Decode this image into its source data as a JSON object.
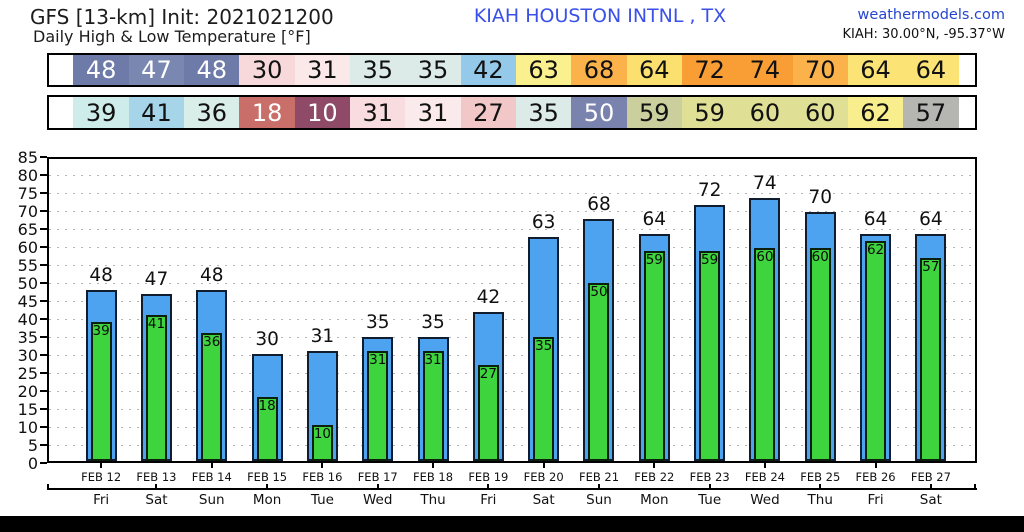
{
  "header": {
    "model_title": "GFS [13-km] Init: 2021021200",
    "subtitle": "Daily High & Low Temperature [°F]",
    "station": "KIAH HOUSTON INTNL , TX",
    "station_color": "#3a50e8",
    "site": "weathermodels.com",
    "site_color": "#2645cf",
    "coords": "KIAH: 30.00°N, -95.37°W"
  },
  "chart_data": {
    "type": "bar",
    "title": "Daily High & Low Temperature [°F]",
    "categories": [
      "FEB 12",
      "FEB 13",
      "FEB 14",
      "FEB 15",
      "FEB 16",
      "FEB 17",
      "FEB 18",
      "FEB 19",
      "FEB 20",
      "FEB 21",
      "FEB 22",
      "FEB 23",
      "FEB 24",
      "FEB 25",
      "FEB 26",
      "FEB 27"
    ],
    "weekdays": [
      "Fri",
      "Sat",
      "Sun",
      "Mon",
      "Tue",
      "Wed",
      "Thu",
      "Fri",
      "Sat",
      "Sun",
      "Mon",
      "Tue",
      "Wed",
      "Thu",
      "Fri",
      "Sat"
    ],
    "series": [
      {
        "name": "High",
        "values": [
          48,
          47,
          48,
          30,
          31,
          35,
          35,
          42,
          63,
          68,
          64,
          72,
          74,
          70,
          64,
          64
        ],
        "color": "#4da3f0",
        "edge": "#101d2e"
      },
      {
        "name": "Low",
        "values": [
          39,
          41,
          36,
          18,
          10,
          31,
          31,
          27,
          35,
          50,
          59,
          59,
          60,
          60,
          62,
          57
        ],
        "color": "#3ed43e",
        "edge": "#0c1f0c"
      }
    ],
    "ylim": [
      0,
      85
    ],
    "ytick_step": 5,
    "grid": "dashed-horizontal",
    "legend": "none"
  },
  "strips": {
    "high": {
      "cells": [
        {
          "value": "48",
          "bg": "#6e7ba9",
          "fg": "#ffffff"
        },
        {
          "value": "47",
          "bg": "#7a88b1",
          "fg": "#ffffff"
        },
        {
          "value": "48",
          "bg": "#6e7ba9",
          "fg": "#ffffff"
        },
        {
          "value": "30",
          "bg": "#f7d9dc",
          "fg": "#111111"
        },
        {
          "value": "31",
          "bg": "#fbe9ea",
          "fg": "#111111"
        },
        {
          "value": "35",
          "bg": "#dcebe7",
          "fg": "#111111"
        },
        {
          "value": "35",
          "bg": "#dcebe7",
          "fg": "#111111"
        },
        {
          "value": "42",
          "bg": "#94c9ea",
          "fg": "#111111"
        },
        {
          "value": "63",
          "bg": "#faf08d",
          "fg": "#111111"
        },
        {
          "value": "68",
          "bg": "#fbb24b",
          "fg": "#111111"
        },
        {
          "value": "64",
          "bg": "#fce06f",
          "fg": "#111111"
        },
        {
          "value": "72",
          "bg": "#f99e34",
          "fg": "#111111"
        },
        {
          "value": "74",
          "bg": "#f99e34",
          "fg": "#111111"
        },
        {
          "value": "70",
          "bg": "#fbb24b",
          "fg": "#111111"
        },
        {
          "value": "64",
          "bg": "#fbe375",
          "fg": "#111111"
        },
        {
          "value": "64",
          "bg": "#fbe375",
          "fg": "#111111"
        }
      ]
    },
    "low": {
      "cells": [
        {
          "value": "39",
          "bg": "#cdecea",
          "fg": "#111111"
        },
        {
          "value": "41",
          "bg": "#a6d5e9",
          "fg": "#111111"
        },
        {
          "value": "36",
          "bg": "#d9ede9",
          "fg": "#111111"
        },
        {
          "value": "18",
          "bg": "#c96e68",
          "fg": "#ffffff"
        },
        {
          "value": "10",
          "bg": "#8e4a66",
          "fg": "#ffffff"
        },
        {
          "value": "31",
          "bg": "#f8dce0",
          "fg": "#111111"
        },
        {
          "value": "31",
          "bg": "#fbeaeb",
          "fg": "#111111"
        },
        {
          "value": "27",
          "bg": "#f2c7c7",
          "fg": "#111111"
        },
        {
          "value": "35",
          "bg": "#dcebe7",
          "fg": "#111111"
        },
        {
          "value": "50",
          "bg": "#7a82ae",
          "fg": "#ffffff"
        },
        {
          "value": "59",
          "bg": "#cbcf9e",
          "fg": "#111111"
        },
        {
          "value": "59",
          "bg": "#dfdf95",
          "fg": "#111111"
        },
        {
          "value": "60",
          "bg": "#dfdf95",
          "fg": "#111111"
        },
        {
          "value": "60",
          "bg": "#dfdf95",
          "fg": "#111111"
        },
        {
          "value": "62",
          "bg": "#f9ee8d",
          "fg": "#111111"
        },
        {
          "value": "57",
          "bg": "#b5b5b2",
          "fg": "#111111"
        }
      ]
    }
  }
}
